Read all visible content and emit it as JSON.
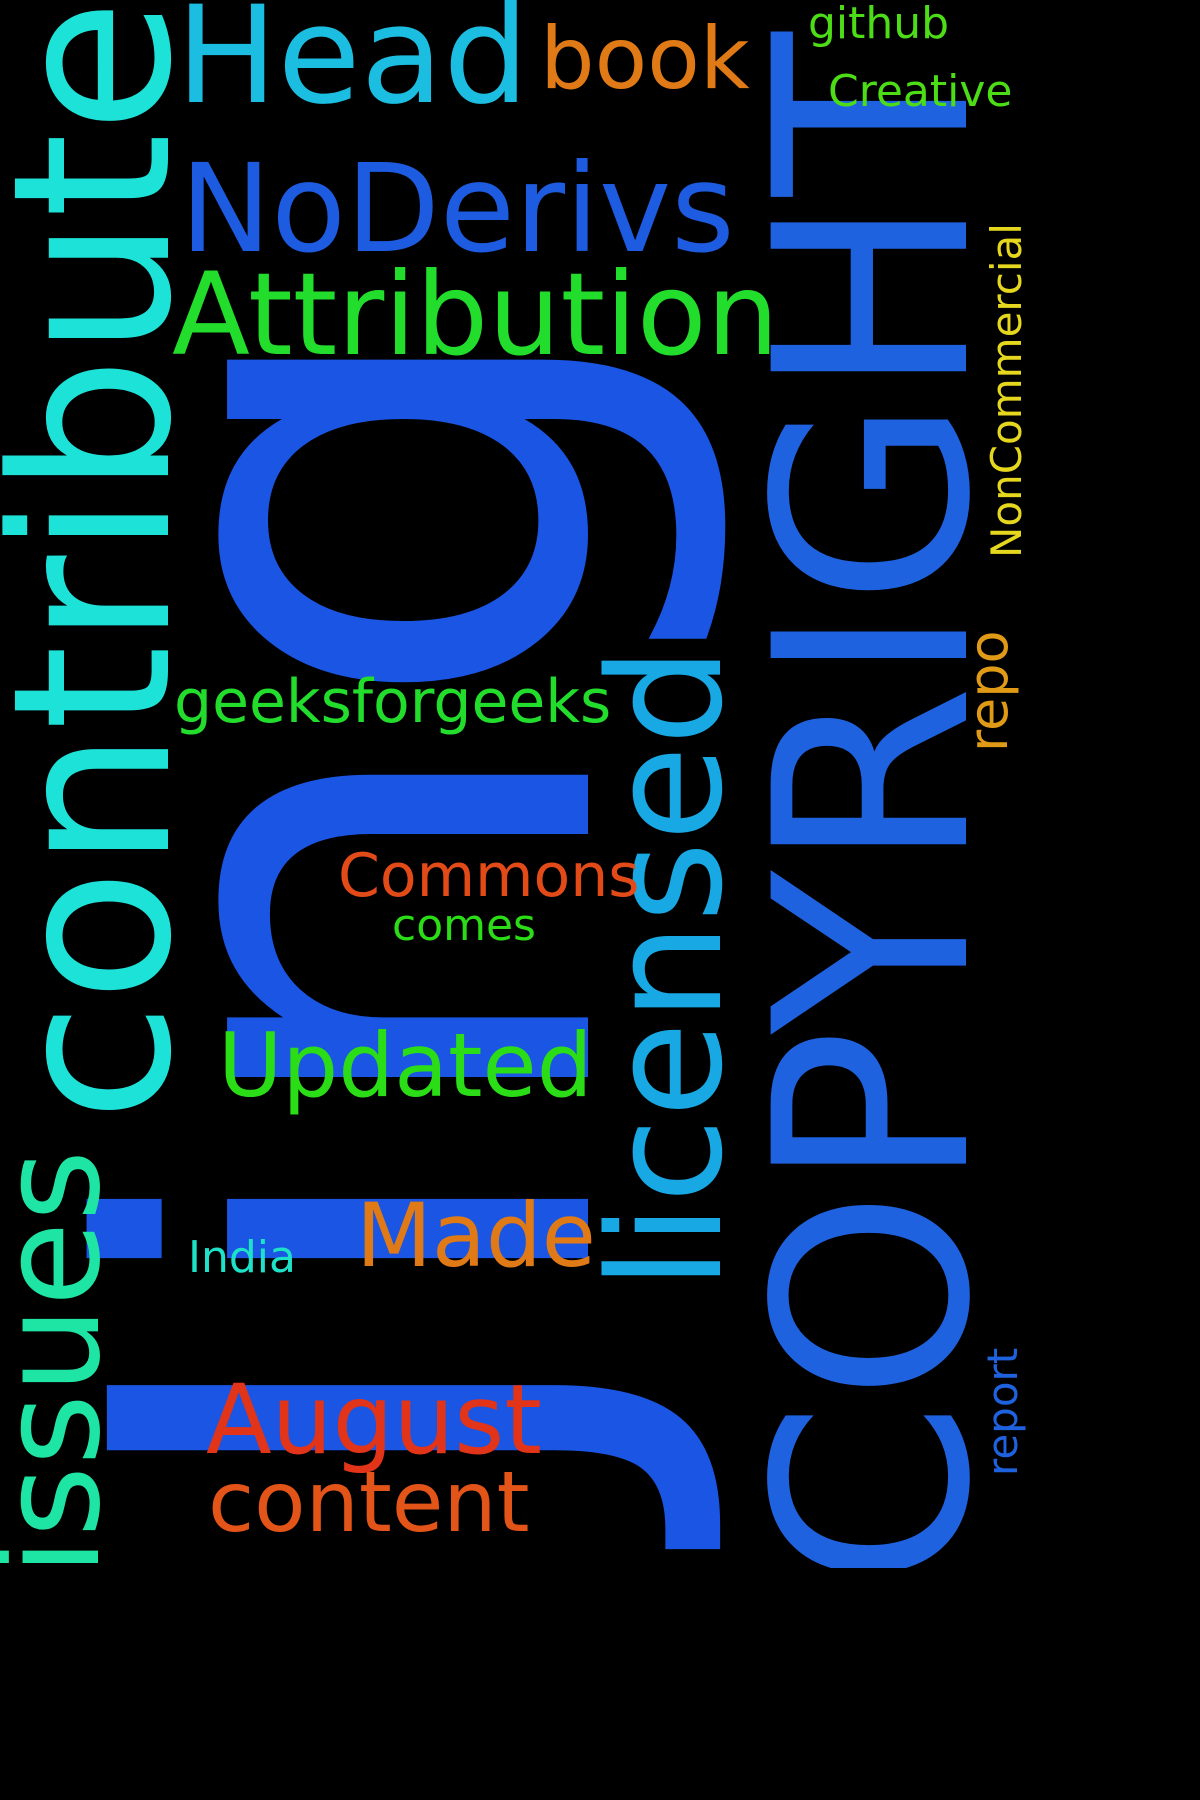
{
  "wordcloud": {
    "background": "#000000",
    "words": {
      "jing": {
        "text": "Jing",
        "color": "#1a55e3"
      },
      "copyright": {
        "text": "COPYRIGHT",
        "color": "#1f62e0"
      },
      "contribute": {
        "text": "contribute",
        "color": "#1de2d8"
      },
      "head": {
        "text": "Head",
        "color": "#1bbde0"
      },
      "noderivs": {
        "text": "NoDerivs",
        "color": "#1d5be0"
      },
      "attribution": {
        "text": "Attribution",
        "color": "#22dd2b"
      },
      "licensed": {
        "text": "licensed",
        "color": "#18a8e3"
      },
      "issues": {
        "text": "issues",
        "color": "#1ee5a3"
      },
      "updated": {
        "text": "Updated",
        "color": "#2bdd16"
      },
      "august": {
        "text": "August",
        "color": "#e23418"
      },
      "content": {
        "text": "content",
        "color": "#e25418"
      },
      "made": {
        "text": "Made",
        "color": "#e07a16"
      },
      "book": {
        "text": "book",
        "color": "#e07a16"
      },
      "commons": {
        "text": "Commons",
        "color": "#e24a18"
      },
      "geeksforgeeks": {
        "text": "geeksforgeeks",
        "color": "#22dd2b"
      },
      "comes": {
        "text": "comes",
        "color": "#2bdd16"
      },
      "india": {
        "text": "India",
        "color": "#1de2c8"
      },
      "github": {
        "text": "github",
        "color": "#4ddd16"
      },
      "creative": {
        "text": "Creative",
        "color": "#4ddd16"
      },
      "noncommercial": {
        "text": "NonCommercial",
        "color": "#e5d71e"
      },
      "repo": {
        "text": "repo",
        "color": "#e09a16"
      },
      "report": {
        "text": "report",
        "color": "#1f62e0"
      }
    }
  }
}
